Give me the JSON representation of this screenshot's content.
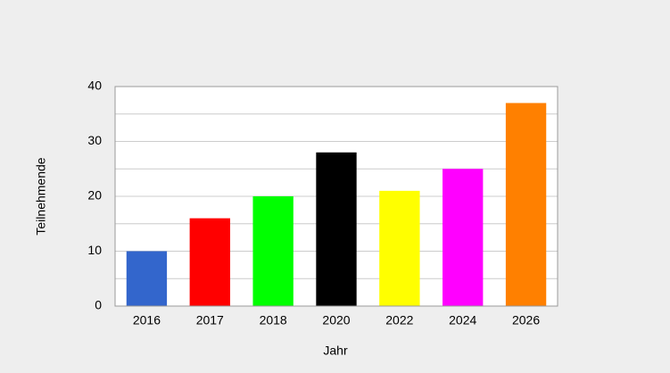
{
  "chart_data": {
    "type": "bar",
    "x_label": "Jahr",
    "y_label": "Teilnehmende",
    "categories": [
      "2016",
      "2017",
      "2018",
      "2020",
      "2022",
      "2024",
      "2026"
    ],
    "values": [
      10,
      16,
      20,
      28,
      21,
      25,
      37
    ],
    "colors": [
      "#3366cc",
      "#ff0000",
      "#00ff00",
      "#000000",
      "#ffff00",
      "#ff00ff",
      "#ff8000"
    ],
    "ylim": [
      0,
      40
    ],
    "yticks": [
      0,
      10,
      20,
      30,
      40
    ],
    "minor_yticks": [
      5,
      15,
      25,
      35
    ],
    "grid": true
  }
}
